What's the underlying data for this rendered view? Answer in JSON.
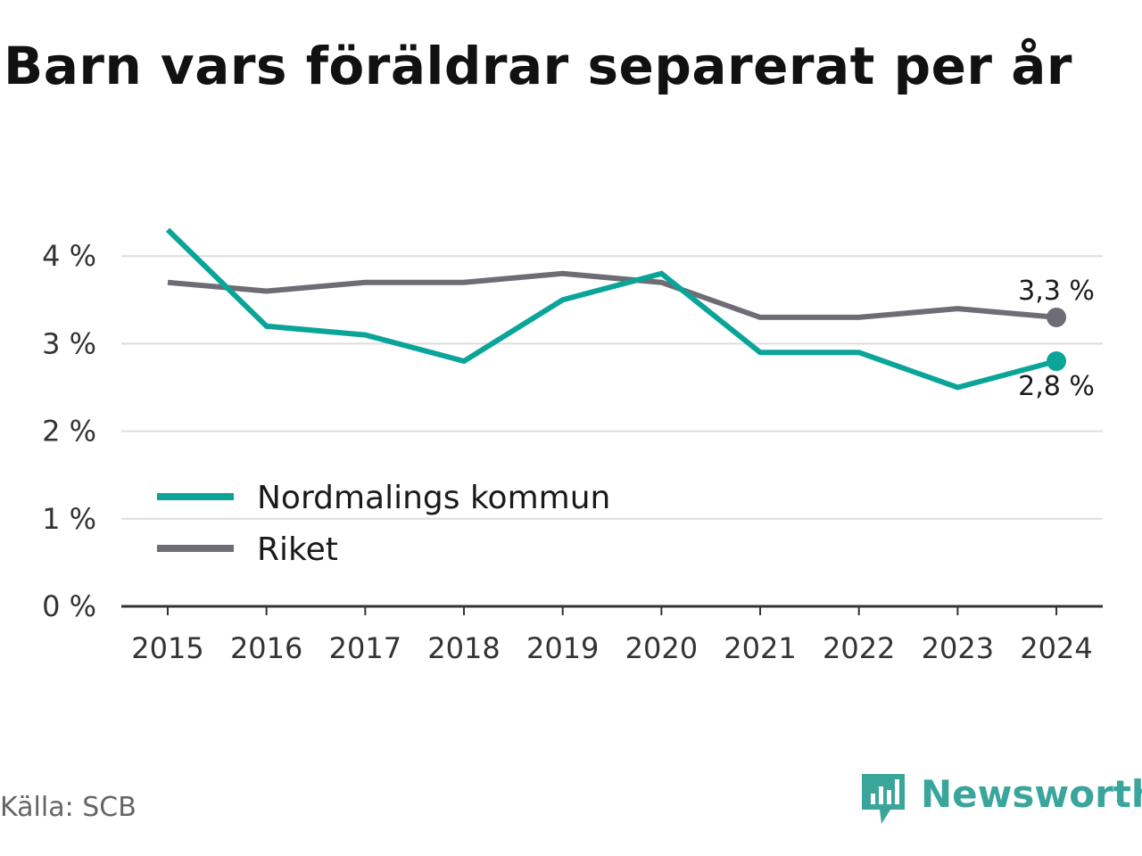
{
  "title": "Barn vars föräldrar separerat per år",
  "source": "Källa: SCB",
  "logo": {
    "text": "Newsworthy",
    "color": "#3aa59b",
    "icon": "newsworthy-logo-icon"
  },
  "chart_data": {
    "type": "line",
    "title": "Barn vars föräldrar separerat per år",
    "xlabel": "",
    "ylabel": "",
    "x": [
      "2015",
      "2016",
      "2017",
      "2018",
      "2019",
      "2020",
      "2021",
      "2022",
      "2023",
      "2024"
    ],
    "ylim": [
      0,
      4.5
    ],
    "yticks": [
      0,
      1,
      2,
      3,
      4
    ],
    "ytick_labels": [
      "0 %",
      "1 %",
      "2 %",
      "3 %",
      "4 %"
    ],
    "grid": true,
    "legend_position": "bottom-left",
    "series": [
      {
        "name": "Nordmalings kommun",
        "color": "#0aa499",
        "values": [
          4.3,
          3.2,
          3.1,
          2.8,
          3.5,
          3.8,
          2.9,
          2.9,
          2.5,
          2.8
        ],
        "end_label": "2,8 %"
      },
      {
        "name": "Riket",
        "color": "#6e6c75",
        "values": [
          3.7,
          3.6,
          3.7,
          3.7,
          3.8,
          3.7,
          3.3,
          3.3,
          3.4,
          3.3
        ],
        "end_label": "3,3 %"
      }
    ]
  }
}
